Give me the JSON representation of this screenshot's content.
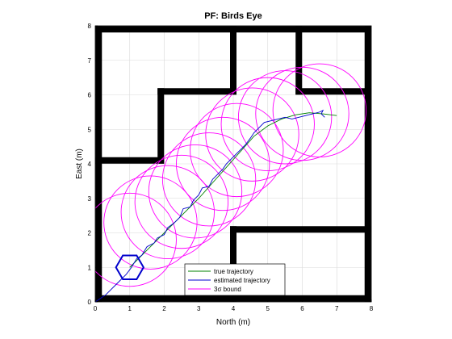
{
  "chart_data": {
    "type": "line",
    "title": "PF: Birds Eye",
    "xlabel": "North (m)",
    "ylabel": "East (m)",
    "xlim": [
      0,
      8
    ],
    "ylim": [
      0,
      8
    ],
    "xticks": [
      "0",
      "1",
      "2",
      "3",
      "4",
      "5",
      "6",
      "7",
      "8"
    ],
    "yticks": [
      "0",
      "1",
      "2",
      "3",
      "4",
      "5",
      "6",
      "7",
      "8"
    ],
    "grid": true,
    "legend_position": "bottom-center",
    "walls": [
      {
        "name": "outer-left",
        "x1": 0.1,
        "y1": 0.1,
        "x2": 0.1,
        "y2": 7.9
      },
      {
        "name": "outer-top",
        "x1": 0.1,
        "y1": 7.9,
        "x2": 7.9,
        "y2": 7.9
      },
      {
        "name": "outer-right",
        "x1": 7.9,
        "y1": 7.9,
        "x2": 7.9,
        "y2": 0.1
      },
      {
        "name": "outer-bottom",
        "x1": 7.9,
        "y1": 0.1,
        "x2": 0.1,
        "y2": 0.1
      },
      {
        "name": "wall-left-shelf",
        "x1": 0.1,
        "y1": 4.1,
        "x2": 1.9,
        "y2": 4.1
      },
      {
        "name": "wall-room-vertical",
        "x1": 1.9,
        "y1": 4.1,
        "x2": 1.9,
        "y2": 6.1
      },
      {
        "name": "wall-room-top",
        "x1": 1.9,
        "y1": 6.1,
        "x2": 4.0,
        "y2": 6.1
      },
      {
        "name": "wall-top-divider-1",
        "x1": 4.0,
        "y1": 7.9,
        "x2": 4.0,
        "y2": 6.1
      },
      {
        "name": "wall-top-divider-2",
        "x1": 5.9,
        "y1": 7.9,
        "x2": 5.9,
        "y2": 6.1
      },
      {
        "name": "wall-right-shelf-top",
        "x1": 5.9,
        "y1": 6.1,
        "x2": 7.9,
        "y2": 6.1
      },
      {
        "name": "wall-lower-room-top",
        "x1": 4.0,
        "y1": 2.1,
        "x2": 7.9,
        "y2": 2.1
      },
      {
        "name": "wall-lower-room-left",
        "x1": 4.0,
        "y1": 2.1,
        "x2": 4.0,
        "y2": 0.1
      }
    ],
    "series": [
      {
        "name": "true trajectory",
        "color": "#008000",
        "points": [
          [
            1.0,
            1.0
          ],
          [
            1.4,
            1.4
          ],
          [
            1.8,
            1.8
          ],
          [
            2.2,
            2.2
          ],
          [
            2.6,
            2.6
          ],
          [
            3.0,
            3.0
          ],
          [
            3.4,
            3.45
          ],
          [
            3.8,
            3.9
          ],
          [
            4.2,
            4.35
          ],
          [
            4.6,
            4.8
          ],
          [
            5.0,
            5.1
          ],
          [
            5.4,
            5.3
          ],
          [
            5.8,
            5.42
          ],
          [
            6.2,
            5.48
          ],
          [
            6.6,
            5.45
          ],
          [
            7.0,
            5.4
          ]
        ]
      },
      {
        "name": "estimated trajectory",
        "color": "#0000cc",
        "points": [
          [
            0.0,
            0.0
          ],
          [
            0.3,
            0.2
          ],
          [
            0.6,
            0.5
          ],
          [
            0.9,
            0.8
          ],
          [
            1.05,
            1.0
          ],
          [
            1.2,
            1.25
          ],
          [
            1.35,
            1.35
          ],
          [
            1.5,
            1.6
          ],
          [
            1.7,
            1.7
          ],
          [
            1.8,
            1.85
          ],
          [
            2.0,
            1.95
          ],
          [
            2.1,
            2.15
          ],
          [
            2.3,
            2.3
          ],
          [
            2.45,
            2.45
          ],
          [
            2.55,
            2.7
          ],
          [
            2.75,
            2.75
          ],
          [
            2.85,
            2.95
          ],
          [
            3.0,
            3.1
          ],
          [
            3.1,
            3.3
          ],
          [
            3.3,
            3.35
          ],
          [
            3.4,
            3.55
          ],
          [
            3.55,
            3.7
          ],
          [
            3.7,
            3.85
          ],
          [
            3.8,
            4.0
          ],
          [
            3.95,
            4.15
          ],
          [
            4.1,
            4.3
          ],
          [
            4.25,
            4.45
          ],
          [
            4.35,
            4.55
          ],
          [
            4.5,
            4.75
          ],
          [
            4.6,
            4.9
          ],
          [
            4.75,
            5.05
          ],
          [
            4.9,
            5.2
          ],
          [
            5.1,
            5.25
          ],
          [
            5.3,
            5.3
          ],
          [
            5.5,
            5.35
          ],
          [
            5.7,
            5.3
          ],
          [
            5.9,
            5.35
          ],
          [
            6.1,
            5.4
          ],
          [
            6.3,
            5.45
          ],
          [
            6.5,
            5.5
          ],
          [
            6.6,
            5.55
          ],
          [
            6.55,
            5.45
          ],
          [
            6.65,
            5.35
          ]
        ]
      },
      {
        "name": "3σ bound",
        "color": "#ff00ff",
        "circles": [
          {
            "cx": 1.0,
            "cy": 1.8,
            "r": 1.35
          },
          {
            "cx": 1.6,
            "cy": 2.3,
            "r": 1.35
          },
          {
            "cx": 2.1,
            "cy": 2.6,
            "r": 1.35
          },
          {
            "cx": 2.5,
            "cy": 2.9,
            "r": 1.35
          },
          {
            "cx": 2.9,
            "cy": 3.2,
            "r": 1.35
          },
          {
            "cx": 3.3,
            "cy": 3.55,
            "r": 1.35
          },
          {
            "cx": 3.7,
            "cy": 4.0,
            "r": 1.35
          },
          {
            "cx": 4.1,
            "cy": 4.4,
            "r": 1.35
          },
          {
            "cx": 4.55,
            "cy": 4.85,
            "r": 1.35
          },
          {
            "cx": 5.0,
            "cy": 5.15,
            "r": 1.35
          },
          {
            "cx": 5.5,
            "cy": 5.35,
            "r": 1.35
          },
          {
            "cx": 6.0,
            "cy": 5.45,
            "r": 1.35
          },
          {
            "cx": 6.5,
            "cy": 5.55,
            "r": 1.35
          }
        ]
      }
    ],
    "robot": {
      "cx": 1.0,
      "cy": 1.0,
      "r": 0.4,
      "color": "#0000cc"
    }
  }
}
